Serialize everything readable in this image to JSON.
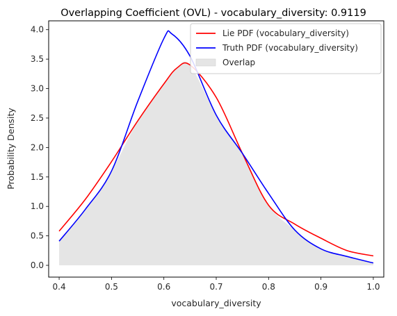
{
  "chart_data": {
    "type": "line",
    "title": "Overlapping Coefficient (OVL) - vocabulary_diversity: 0.9119",
    "xlabel": "vocabulary_diversity",
    "ylabel": "Probability Density",
    "xlim": [
      0.38,
      1.02
    ],
    "ylim": [
      -0.2,
      4.15
    ],
    "xticks": [
      "0.4",
      "0.5",
      "0.6",
      "0.7",
      "0.8",
      "0.9",
      "1.0"
    ],
    "yticks": [
      "0.0",
      "0.5",
      "1.0",
      "1.5",
      "2.0",
      "2.5",
      "3.0",
      "3.5",
      "4.0"
    ],
    "legend_position": "top-right",
    "grid": false,
    "series": [
      {
        "name": "Lie PDF (vocabulary_diversity)",
        "color": "#ff0000",
        "x": [
          0.4,
          0.45,
          0.5,
          0.55,
          0.6,
          0.625,
          0.65,
          0.7,
          0.75,
          0.8,
          0.85,
          0.9,
          0.95,
          1.0
        ],
        "y": [
          0.58,
          1.12,
          1.76,
          2.45,
          3.08,
          3.35,
          3.4,
          2.85,
          1.9,
          1.02,
          0.7,
          0.46,
          0.25,
          0.16
        ]
      },
      {
        "name": "Truth PDF (vocabulary_diversity)",
        "color": "#0000ff",
        "x": [
          0.4,
          0.45,
          0.5,
          0.55,
          0.6,
          0.615,
          0.65,
          0.7,
          0.75,
          0.8,
          0.85,
          0.9,
          0.95,
          1.0
        ],
        "y": [
          0.41,
          0.95,
          1.6,
          2.78,
          3.85,
          3.93,
          3.55,
          2.55,
          1.9,
          1.22,
          0.6,
          0.28,
          0.15,
          0.04
        ]
      },
      {
        "name": "Overlap",
        "type": "area",
        "color": "#e5e5e5",
        "x": [
          0.4,
          0.45,
          0.5,
          0.55,
          0.6,
          0.625,
          0.65,
          0.7,
          0.75,
          0.8,
          0.85,
          0.9,
          0.95,
          1.0
        ],
        "y": [
          0.41,
          0.95,
          1.6,
          2.45,
          3.08,
          3.35,
          3.4,
          2.55,
          1.9,
          1.02,
          0.6,
          0.28,
          0.15,
          0.04
        ]
      }
    ]
  }
}
